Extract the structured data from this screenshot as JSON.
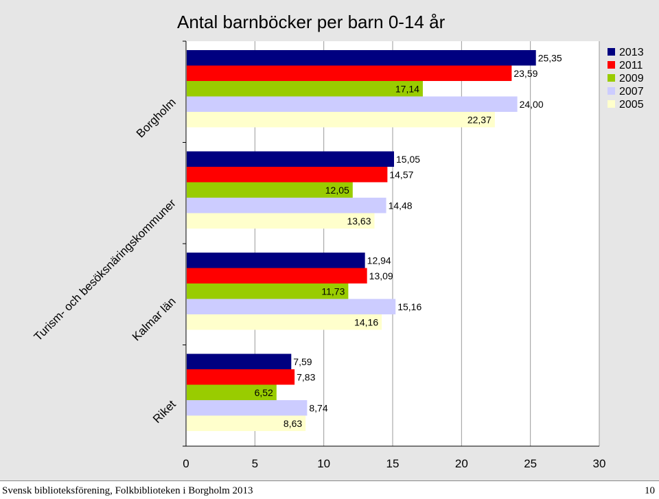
{
  "chart_data": {
    "type": "bar",
    "orientation": "horizontal",
    "title": "Antal barnböcker per barn 0-14 år",
    "categories": [
      "Borgholm",
      "Turism- och besöksnäringskommuner",
      "Kalmar län",
      "Riket"
    ],
    "series": [
      {
        "name": "2013",
        "color": "#000080",
        "values": [
          25.35,
          15.05,
          12.94,
          7.59
        ],
        "labels": [
          "25,35",
          "15,05",
          "12,94",
          "7,59"
        ]
      },
      {
        "name": "2011",
        "color": "#ff0000",
        "values": [
          23.59,
          14.57,
          13.09,
          7.83
        ],
        "labels": [
          "23,59",
          "14,57",
          "13,09",
          "7,83"
        ]
      },
      {
        "name": "2009",
        "color": "#99cc00",
        "values": [
          17.14,
          12.05,
          11.73,
          6.52
        ],
        "labels": [
          "17,14",
          "12,05",
          "11,73",
          "6,52"
        ]
      },
      {
        "name": "2007",
        "color": "#ccccff",
        "values": [
          24.0,
          14.48,
          15.16,
          8.74
        ],
        "labels": [
          "24,00",
          "14,48",
          "15,16",
          "8,74"
        ]
      },
      {
        "name": "2005",
        "color": "#ffffcc",
        "values": [
          22.37,
          13.63,
          14.16,
          8.63
        ],
        "labels": [
          "22,37",
          "13,63",
          "14,16",
          "8,63"
        ]
      }
    ],
    "xlim": [
      0,
      30
    ],
    "xticks": [
      0,
      5,
      10,
      15,
      20,
      25,
      30
    ],
    "grid": true,
    "legend_position": "top-right",
    "plot_background": "#ffffff",
    "figure_background": "#e6e6e6"
  },
  "footer": {
    "text": "Svensk biblioteksförening, Folkbiblioteken i Borgholm 2013",
    "page_number": "10"
  }
}
